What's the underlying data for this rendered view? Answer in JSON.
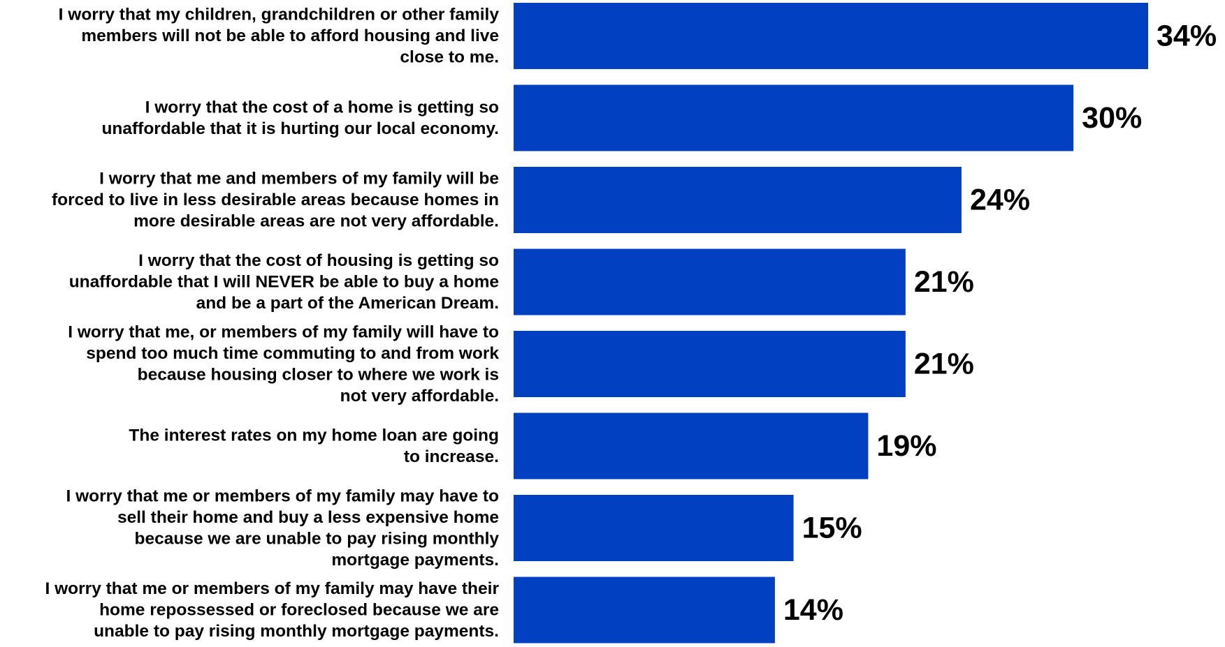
{
  "chart_data": {
    "type": "bar",
    "orientation": "horizontal",
    "categories": [
      "I worry that my children, grandchildren or other family members will not be able to afford housing and live close to me.",
      "I worry that the cost of a home is getting so unaffordable that it is hurting our local economy.",
      "I worry that me and members of my family will be forced to live in less desirable areas because homes in more desirable areas are not very affordable.",
      "I worry that the cost of housing is getting so unaffordable that I will NEVER be able to buy a home and be a part of the American Dream.",
      "I worry that me, or members of my family will have to spend too much time commuting to and from work because housing closer to where we work is not very affordable.",
      "The interest rates on my home loan are going to increase.",
      "I worry that me or members of my family may have to sell their home and buy a less expensive home because we are unable to pay rising monthly mortgage payments.",
      "I worry that me or members of my family may have their home repossessed or foreclosed because we are unable to pay rising monthly mortgage payments."
    ],
    "category_lines": [
      [
        "I worry that my children, grandchildren or other family",
        "members will not be able to afford housing and live",
        "close to me."
      ],
      [
        "I worry that the cost of a home is getting so",
        "unaffordable that it is hurting our local economy."
      ],
      [
        "I worry that me and members of my family will be",
        "forced to live in less desirable areas because homes in",
        "more desirable areas are not very affordable."
      ],
      [
        "I worry that the cost of housing is getting so",
        "unaffordable that I will NEVER be able to buy a home",
        "and be a part of the American Dream."
      ],
      [
        "I worry that me, or members of my family will have to",
        "spend too much time commuting to and from work",
        "because housing closer to where we work is",
        "not very affordable."
      ],
      [
        "The interest rates on my home loan are going",
        "to increase."
      ],
      [
        "I worry that me or members of my family may have to",
        "sell their home and buy a less expensive home",
        "because we are unable to pay rising monthly",
        "mortgage payments."
      ],
      [
        "I worry that me or members of my family may have their",
        "home repossessed or foreclosed because we are",
        "unable to pay rising monthly mortgage payments."
      ]
    ],
    "values": [
      34,
      30,
      24,
      21,
      21,
      19,
      15,
      14
    ],
    "value_labels": [
      "34%",
      "30%",
      "24%",
      "21%",
      "21%",
      "19%",
      "15%",
      "14%"
    ],
    "title": "",
    "xlabel": "",
    "ylabel": "",
    "xlim": [
      0,
      34
    ],
    "grid": false,
    "legend": "none",
    "bar_color": "#0040C1"
  }
}
